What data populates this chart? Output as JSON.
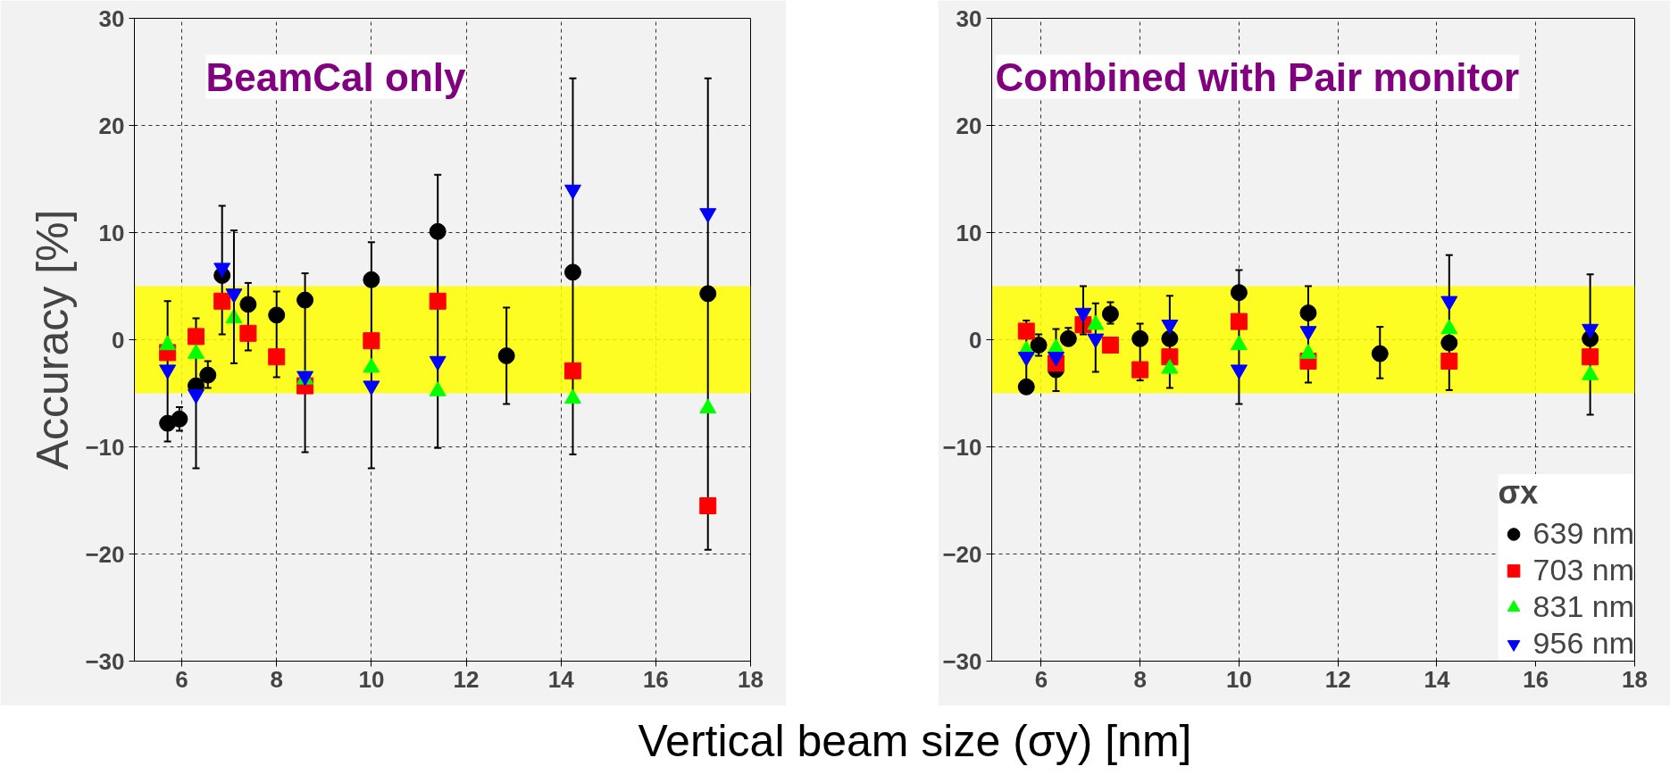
{
  "chart_data": [
    {
      "type": "scatter",
      "ylabel": "Accuracy [%]",
      "xlabel": "Vertical beam size (σy) [nm]",
      "annotations": [
        "BeamCal only"
      ],
      "xlim": [
        5,
        18
      ],
      "ylim": [
        -30,
        30
      ],
      "xticks": [
        6,
        8,
        10,
        12,
        14,
        16,
        18
      ],
      "yticks": [
        -30,
        -20,
        -10,
        0,
        10,
        20,
        30
      ],
      "grid": true,
      "legend": false,
      "bands": [
        {
          "axis": "y",
          "from": -5,
          "to": 5,
          "color": "#ffff00"
        }
      ],
      "series": [
        {
          "color": "#000000",
          "marker": "circle",
          "x": [
            5.7,
            5.95,
            6.3,
            6.55,
            6.85,
            7.4,
            8,
            8.6,
            10,
            11.4,
            12.85,
            14.25,
            17.1
          ],
          "values": [
            -7.8,
            -7.4,
            -4.3,
            -3.3,
            6.0,
            3.3,
            2.3,
            3.7,
            5.6,
            10.1,
            -1.5,
            6.3,
            4.3
          ],
          "errors": [
            [
              -9.5,
              3.6
            ],
            [
              -8.5,
              -6.3
            ],
            [
              -12,
              2
            ],
            [
              -4.5,
              -2
            ],
            [
              0.5,
              12.5
            ],
            [
              -1,
              5.3
            ],
            [
              -3.5,
              4.5
            ],
            [
              -10.5,
              6.2
            ],
            [
              -12,
              9.1
            ],
            [
              -10.1,
              15.4
            ],
            [
              -6,
              3
            ],
            [
              -10.7,
              24.4
            ],
            [
              -19.6,
              24.4
            ]
          ]
        },
        {
          "color": "#ff0000",
          "marker": "square",
          "x": [
            5.7,
            6.3,
            6.85,
            7.4,
            8,
            8.6,
            10,
            11.4,
            14.25,
            17.1
          ],
          "values": [
            -1.2,
            0.3,
            3.6,
            0.6,
            -1.6,
            -4.3,
            -0.1,
            3.6,
            -2.9,
            -15.5
          ]
        },
        {
          "color": "#00ff00",
          "marker": "triangle",
          "x": [
            5.7,
            6.3,
            7.1,
            8.6,
            10,
            11.4,
            14.25,
            17.1
          ],
          "values": [
            -0.5,
            -1.3,
            2.0,
            -3.7,
            -2.6,
            -4.8,
            -5.5,
            -6.4
          ]
        },
        {
          "color": "#0000ff",
          "x": [
            5.7,
            6.3,
            6.85,
            7.1,
            8.6,
            10,
            11.4,
            14.25,
            17.1
          ],
          "values": [
            -2.8,
            -5.1,
            6.7,
            4.3,
            -3.4,
            -4.3,
            -2.0,
            14.0,
            11.8
          ],
          "errors": [
            null,
            null,
            null,
            [
              -2.2,
              10.2
            ],
            null,
            null,
            null,
            null,
            null
          ]
        }
      ]
    },
    {
      "type": "scatter",
      "annotations": [
        "Combined with Pair monitor"
      ],
      "xlim": [
        5,
        18
      ],
      "ylim": [
        -30,
        30
      ],
      "xticks": [
        6,
        8,
        10,
        12,
        14,
        16,
        18
      ],
      "yticks": [
        -30,
        -20,
        -10,
        0,
        10,
        20,
        30
      ],
      "grid": true,
      "legend": "bottom right",
      "legend_title": "σx",
      "bands": [
        {
          "axis": "y",
          "from": -5,
          "to": 5,
          "color": "#ffff00"
        }
      ],
      "series": [
        {
          "name": "639 nm",
          "color": "#000000",
          "marker": "circle",
          "x": [
            5.7,
            5.95,
            6.3,
            6.55,
            7.4,
            8,
            8.6,
            10,
            11.4,
            12.85,
            14.25,
            17.1
          ],
          "values": [
            -4.4,
            -0.5,
            -2.8,
            0.1,
            2.4,
            0.1,
            0.1,
            4.4,
            2.5,
            -1.3,
            -0.3,
            0.1
          ],
          "errors": [
            [
              -5,
              1.8
            ],
            [
              -1.5,
              0.5
            ],
            [
              -4.8,
              1.0
            ],
            [
              -0.5,
              1.1
            ],
            [
              1.5,
              3.5
            ],
            [
              -3.8,
              1.5
            ],
            [
              -4.5,
              4.1
            ],
            [
              -6,
              6.5
            ],
            [
              -4,
              5
            ],
            [
              -3.6,
              1.2
            ],
            [
              -4.7,
              7.9
            ],
            [
              -7,
              6.1
            ]
          ]
        },
        {
          "name": "703 nm",
          "color": "#ff0000",
          "marker": "square",
          "x": [
            5.7,
            6.3,
            6.85,
            7.4,
            8,
            8.6,
            10,
            11.4,
            14.25,
            17.1
          ],
          "values": [
            0.8,
            -2.2,
            1.4,
            -0.5,
            -2.8,
            -1.6,
            1.7,
            -2.0,
            -2.0,
            -1.6
          ]
        },
        {
          "name": "831 nm",
          "color": "#00ff00",
          "marker": "triangle",
          "x": [
            5.7,
            6.3,
            7.1,
            8.6,
            10,
            11.4,
            14.25,
            17.1
          ],
          "values": [
            -1.0,
            -0.8,
            1.4,
            -2.7,
            -0.5,
            -1.3,
            1.0,
            -3.3
          ],
          "errors": [
            null,
            null,
            [
              -3,
              3.4
            ],
            null,
            null,
            null,
            null,
            null
          ]
        },
        {
          "name": "956 nm",
          "color": "#0000ff",
          "x": [
            5.7,
            6.3,
            6.85,
            7.1,
            8.6,
            10,
            11.4,
            14.25,
            17.1
          ],
          "values": [
            -1.6,
            -1.6,
            2.5,
            0.1,
            1.4,
            -2.8,
            0.8,
            3.6,
            1.0
          ],
          "errors": [
            null,
            null,
            [
              0.5,
              5
            ],
            null,
            null,
            null,
            null,
            null,
            null
          ]
        }
      ]
    }
  ]
}
